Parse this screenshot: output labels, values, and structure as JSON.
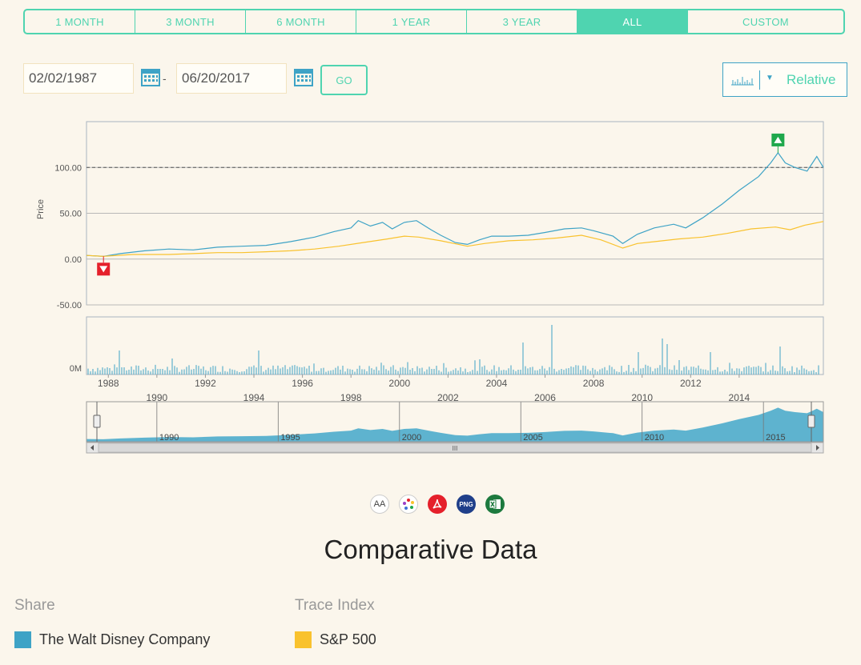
{
  "range_tabs": [
    {
      "label": "1 MONTH",
      "active": false
    },
    {
      "label": "3 MONTH",
      "active": false
    },
    {
      "label": "6 MONTH",
      "active": false
    },
    {
      "label": "1 YEAR",
      "active": false
    },
    {
      "label": "3 YEAR",
      "active": false
    },
    {
      "label": "ALL",
      "active": true
    },
    {
      "label": "CUSTOM",
      "active": false
    }
  ],
  "date_from": "02/02/1987",
  "date_to": "06/20/2017",
  "date_separator": "-",
  "go_label": "GO",
  "mode_label": "Relative",
  "colors": {
    "accent": "#4fd4b0",
    "share": "#3ea3c6",
    "index": "#f9c22e",
    "low_marker": "#e5202b",
    "high_marker": "#1fa84c"
  },
  "tool_icons": [
    "font-size-icon",
    "palette-icon",
    "pdf-icon",
    "png-icon",
    "excel-icon"
  ],
  "png_icon_text": "PNG",
  "font_icon_text": "AA",
  "page_title": "Comparative Data",
  "legend": {
    "share_heading": "Share",
    "index_heading": "Trace Index",
    "share_name": "The Walt Disney Company",
    "index_name": "S&P 500"
  },
  "chart_data": {
    "type": "line",
    "ylabel": "Price",
    "ylim": [
      -50,
      150
    ],
    "yticks": [
      "100.00",
      "50.00",
      "0.00",
      "-50.00"
    ],
    "ytick_values": [
      100,
      50,
      0,
      -50
    ],
    "reference_line": 100,
    "volume_label": "0M",
    "x_ticks": [
      "1988",
      "1990",
      "1992",
      "1994",
      "1996",
      "1998",
      "2000",
      "2002",
      "2004",
      "2006",
      "2008",
      "2010",
      "2012",
      "2014"
    ],
    "navigator_ticks": [
      "1990",
      "1995",
      "2000",
      "2005",
      "2010",
      "2015"
    ],
    "navigator_handle_label": "III",
    "markers": [
      {
        "type": "low",
        "year": 1987.8,
        "value": 3
      },
      {
        "type": "high",
        "year": 2015.6,
        "value": 116
      }
    ],
    "series": [
      {
        "name": "The Walt Disney Company",
        "x": [
          1987.1,
          1987.8,
          1988.5,
          1989.5,
          1990.5,
          1991.5,
          1992.5,
          1993.5,
          1994.5,
          1995.5,
          1996.5,
          1997.3,
          1998.0,
          1998.3,
          1998.8,
          1999.3,
          1999.7,
          2000.2,
          2000.7,
          2001.3,
          2001.7,
          2002.3,
          2002.8,
          2003.3,
          2003.8,
          2004.5,
          2005.3,
          2006.0,
          2006.8,
          2007.5,
          2008.0,
          2008.8,
          2009.2,
          2009.8,
          2010.5,
          2011.3,
          2011.8,
          2012.5,
          2013.3,
          2014.0,
          2014.8,
          2015.3,
          2015.6,
          2015.9,
          2016.3,
          2016.8,
          2017.2,
          2017.47
        ],
        "values": [
          4,
          3,
          6,
          9,
          11,
          10,
          13,
          14,
          15,
          19,
          24,
          30,
          34,
          42,
          36,
          40,
          33,
          40,
          42,
          32,
          26,
          18,
          16,
          21,
          25,
          25,
          26,
          29,
          33,
          34,
          31,
          25,
          17,
          27,
          34,
          38,
          34,
          45,
          60,
          75,
          90,
          105,
          116,
          105,
          100,
          96,
          112,
          100
        ]
      },
      {
        "name": "S&P 500",
        "x": [
          1987.1,
          1987.8,
          1989.0,
          1990.5,
          1991.5,
          1992.5,
          1993.5,
          1994.5,
          1995.5,
          1996.5,
          1997.5,
          1998.5,
          1999.5,
          2000.2,
          2000.8,
          2001.7,
          2002.8,
          2003.5,
          2004.5,
          2005.5,
          2006.5,
          2007.5,
          2008.3,
          2009.2,
          2009.8,
          2010.5,
          2011.5,
          2012.5,
          2013.5,
          2014.5,
          2015.5,
          2016.1,
          2016.7,
          2017.47
        ],
        "values": [
          4,
          3,
          5,
          5,
          6,
          7,
          7,
          8,
          9,
          11,
          14,
          18,
          22,
          25,
          24,
          20,
          14,
          17,
          20,
          21,
          23,
          26,
          21,
          12,
          17,
          19,
          22,
          24,
          28,
          33,
          35,
          32,
          37,
          41
        ]
      }
    ]
  }
}
